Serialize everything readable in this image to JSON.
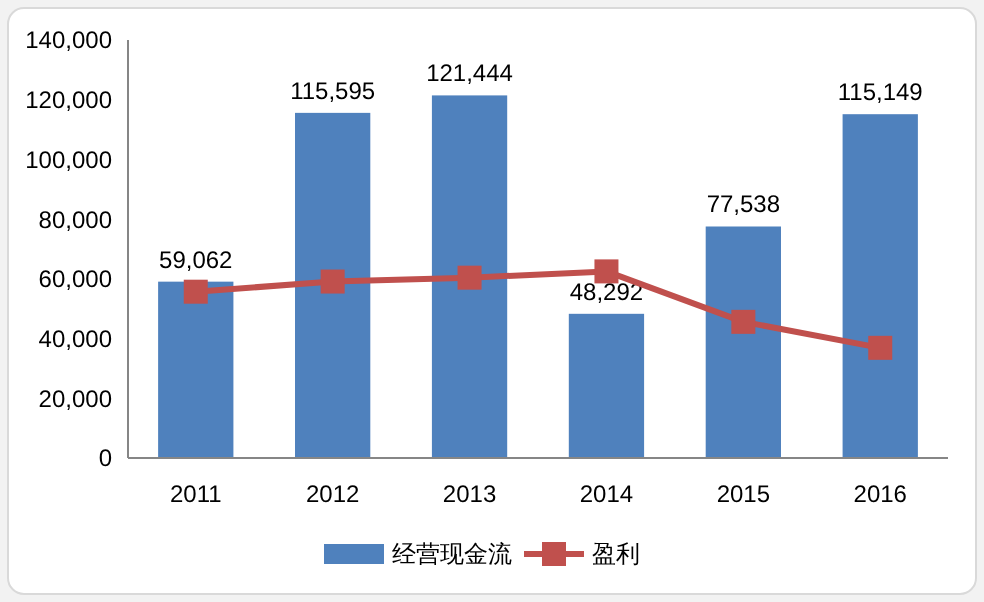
{
  "chart_data": {
    "type": "bar",
    "categories": [
      "2011",
      "2012",
      "2013",
      "2014",
      "2015",
      "2016"
    ],
    "series": [
      {
        "name": "经营现金流",
        "color": "#4f81bd",
        "values": [
          59062,
          115595,
          121444,
          48292,
          77538,
          115149
        ],
        "value_labels": [
          "59,062",
          "115,595",
          "121,444",
          "48,292",
          "77,538",
          "115,149"
        ]
      },
      {
        "name": "盈利",
        "type": "line",
        "color": "#c0504d",
        "values": [
          55700,
          59100,
          60400,
          62500,
          45600,
          36900
        ],
        "marker": "square"
      }
    ],
    "ylim": [
      0,
      140000
    ],
    "yticks": [
      0,
      {
        "value": 20000,
        "label": "20,000"
      },
      {
        "value": 40000,
        "label": "40,000"
      },
      {
        "value": 60000,
        "label": "60,000"
      },
      {
        "value": 80000,
        "label": "80,000"
      },
      {
        "value": 100000,
        "label": "100,000"
      },
      {
        "value": 120000,
        "label": "120,000"
      },
      {
        "value": 140000,
        "label": "140,000"
      }
    ],
    "grid": false,
    "legend": "bottom"
  }
}
